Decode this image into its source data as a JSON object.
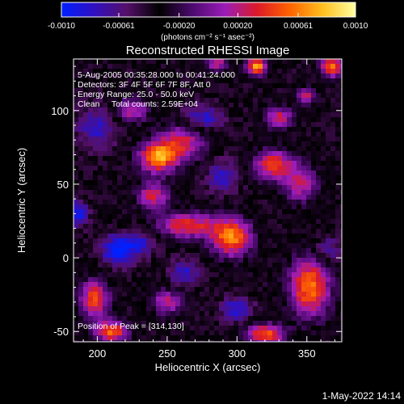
{
  "chart_data": {
    "type": "heatmap",
    "title": "Reconstructed RHESSI Image",
    "xlabel": "Heliocentric X (arcsec)",
    "ylabel": "Heliocentric Y (arcsec)",
    "xlim": [
      183,
      375
    ],
    "ylim": [
      -57,
      135
    ],
    "x_ticks": [
      200,
      250,
      300,
      350
    ],
    "x_tick_labels": [
      "200",
      "250",
      "300",
      "350"
    ],
    "y_ticks": [
      -50,
      0,
      50,
      100
    ],
    "y_tick_labels": [
      "-50",
      "0",
      "50",
      "100"
    ],
    "colorbar": {
      "min": -0.001,
      "max": 0.001,
      "ticks": [
        -0.001,
        -0.00061,
        -0.0002,
        0.0002,
        0.00061,
        0.001
      ],
      "tick_labels": [
        "-0.0010",
        "-0.00061",
        "-0.00020",
        "0.00020",
        "0.00061",
        "0.0010"
      ],
      "unit_label": "(photons cm⁻² s⁻¹ asec⁻²)",
      "colormap": [
        "#0020ff",
        "#3010c0",
        "#55106a",
        "#000000",
        "#4c0a6e",
        "#9a1cb8",
        "#dc1a28",
        "#ff6400",
        "#ffc020",
        "#ffffa0"
      ]
    },
    "annotations": [
      "5-Aug-2005 00:35:28.000 to 00:41:24.000",
      "Detectors: 3F 4F 5F 6F 7F 8F, Att 0",
      "Energy Range: 25.0 - 50.0 keV",
      "Clean     Total counts: 2.59E+04"
    ],
    "peak_label": "Position of Peak = [314,130]",
    "sources": [
      {
        "x": 243,
        "y": 68,
        "peak": 0.00095,
        "spread_x": 9,
        "spread_y": 7
      },
      {
        "x": 260,
        "y": 78,
        "peak": 0.0006,
        "spread_x": 12,
        "spread_y": 9
      },
      {
        "x": 296,
        "y": 14,
        "peak": 0.00092,
        "spread_x": 10,
        "spread_y": 9
      },
      {
        "x": 265,
        "y": 22,
        "peak": 0.0007,
        "spread_x": 15,
        "spread_y": 6
      },
      {
        "x": 326,
        "y": 63,
        "peak": 0.00075,
        "spread_x": 10,
        "spread_y": 7
      },
      {
        "x": 345,
        "y": 50,
        "peak": 0.0005,
        "spread_x": 9,
        "spread_y": 9
      },
      {
        "x": 314,
        "y": 130,
        "peak": 0.001,
        "spread_x": 5,
        "spread_y": 4
      },
      {
        "x": 286,
        "y": 132,
        "peak": 0.00055,
        "spread_x": 5,
        "spread_y": 4
      },
      {
        "x": 368,
        "y": 130,
        "peak": 0.00085,
        "spread_x": 6,
        "spread_y": 5
      },
      {
        "x": 350,
        "y": 110,
        "peak": 0.0005,
        "spread_x": 5,
        "spread_y": 4
      },
      {
        "x": 198,
        "y": -28,
        "peak": 0.0008,
        "spread_x": 7,
        "spread_y": 9
      },
      {
        "x": 210,
        "y": -50,
        "peak": 0.00085,
        "spread_x": 8,
        "spread_y": 5
      },
      {
        "x": 250,
        "y": -30,
        "peak": 0.0005,
        "spread_x": 8,
        "spread_y": 6
      },
      {
        "x": 352,
        "y": -20,
        "peak": 0.0009,
        "spread_x": 10,
        "spread_y": 14
      },
      {
        "x": 320,
        "y": -52,
        "peak": 0.0008,
        "spread_x": 10,
        "spread_y": 5
      },
      {
        "x": 240,
        "y": 42,
        "peak": 0.0006,
        "spread_x": 8,
        "spread_y": 7
      },
      {
        "x": 330,
        "y": 95,
        "peak": 0.0006,
        "spread_x": 7,
        "spread_y": 5
      },
      {
        "x": 225,
        "y": 100,
        "peak": 0.0005,
        "spread_x": 8,
        "spread_y": 6
      },
      {
        "x": 200,
        "y": 88,
        "peak": -0.0004,
        "spread_x": 10,
        "spread_y": 10
      },
      {
        "x": 186,
        "y": 30,
        "peak": -0.0006,
        "spread_x": 5,
        "spread_y": 6
      },
      {
        "x": 215,
        "y": 5,
        "peak": -0.0007,
        "spread_x": 8,
        "spread_y": 7
      },
      {
        "x": 232,
        "y": 10,
        "peak": -0.0004,
        "spread_x": 7,
        "spread_y": 6
      },
      {
        "x": 262,
        "y": -10,
        "peak": -0.0004,
        "spread_x": 8,
        "spread_y": 6
      },
      {
        "x": 275,
        "y": 95,
        "peak": -0.00045,
        "spread_x": 10,
        "spread_y": 6
      },
      {
        "x": 300,
        "y": -35,
        "peak": -0.00045,
        "spread_x": 8,
        "spread_y": 6
      },
      {
        "x": 365,
        "y": 5,
        "peak": -0.00035,
        "spread_x": 7,
        "spread_y": 6
      },
      {
        "x": 290,
        "y": 55,
        "peak": -0.0004,
        "spread_x": 8,
        "spread_y": 8
      }
    ],
    "background_level": -0.00038
  },
  "footer": {
    "date_stamp": "1-May-2022 14:14"
  }
}
